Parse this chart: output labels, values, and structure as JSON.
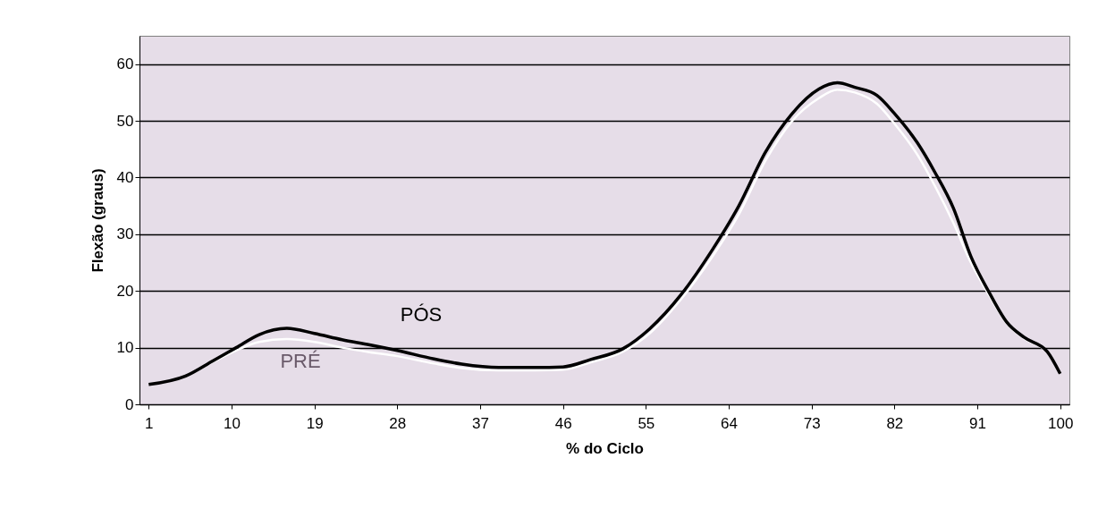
{
  "chart_data": {
    "type": "line",
    "xlabel": "% do Ciclo",
    "ylabel": "Flexão (graus)",
    "xlim": [
      0,
      101
    ],
    "xticks": [
      1,
      10,
      19,
      28,
      37,
      46,
      55,
      64,
      73,
      82,
      91,
      100
    ],
    "ylim": [
      0,
      65
    ],
    "yticks": [
      0,
      10,
      20,
      30,
      40,
      50,
      60
    ],
    "grid": "y",
    "line_style": "solid",
    "marker": "none",
    "series": [
      {
        "name": "PÓS",
        "color": "#000000",
        "x": [
          1,
          5,
          8,
          10.5,
          13,
          16,
          19,
          22,
          25,
          28,
          32,
          35,
          39,
          43,
          46,
          49,
          52.5,
          55.4,
          58.8,
          62.2,
          65.1,
          68,
          70.9,
          73.8,
          75.8,
          77.7,
          80.1,
          82,
          84.5,
          86.4,
          88.4,
          90.3,
          92.3,
          94.2,
          96.1,
          98.6,
          100
        ],
        "values": [
          3.5,
          5,
          7.7,
          10,
          12.3,
          13.4,
          12.5,
          11.4,
          10.5,
          9.5,
          8,
          7.1,
          6.5,
          6.5,
          6.6,
          7.9,
          9.8,
          13.3,
          19.3,
          27.2,
          35,
          44.5,
          51.3,
          55.6,
          56.7,
          55.9,
          54.5,
          51.3,
          46.1,
          40.9,
          34.6,
          26.1,
          19.7,
          14.5,
          11.8,
          9.3,
          5.4
        ]
      },
      {
        "name": "PRÉ",
        "color": "#ffffff",
        "x": [
          1,
          5,
          8,
          10.5,
          13,
          16,
          19,
          22,
          25,
          28,
          32,
          35,
          39,
          43,
          46,
          49,
          52.5,
          55.4,
          58.8,
          62.2,
          65.1,
          68,
          70.9,
          73.8,
          75.8,
          77.7,
          80.1,
          82,
          84.5,
          86.4,
          88.4,
          90.3,
          92.3,
          94.2,
          96.1,
          98.6,
          100
        ],
        "values": [
          3.5,
          5,
          7.5,
          9.5,
          11,
          11.5,
          11,
          10,
          9.2,
          8.5,
          7.2,
          6.4,
          6,
          6,
          6.1,
          7.4,
          9.3,
          12.5,
          18.5,
          26,
          33.5,
          43,
          50,
          54,
          55.5,
          55,
          53,
          49.5,
          44,
          38.5,
          32,
          25,
          19.2,
          14.3,
          11.6,
          9.2,
          5.4
        ]
      }
    ]
  }
}
